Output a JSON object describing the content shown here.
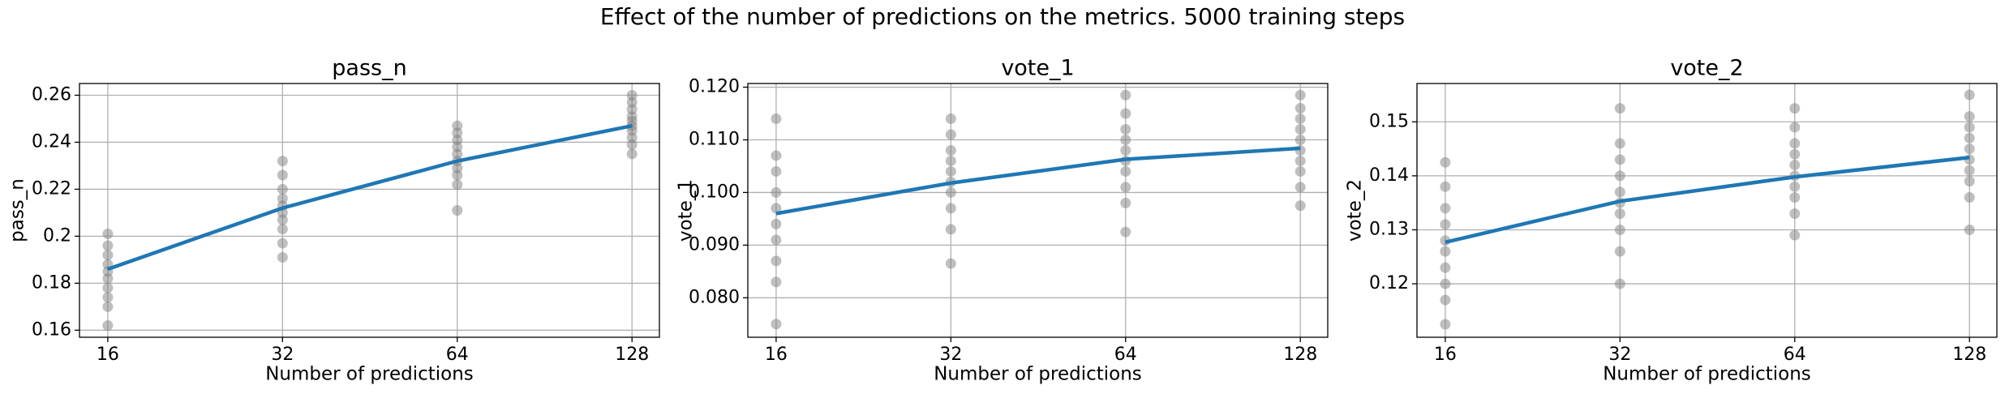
{
  "title": "Effect of the number of predictions on the metrics. 5000 training steps",
  "chart_data": [
    {
      "type": "line",
      "title": "pass_n",
      "xlabel": "Number of predictions",
      "ylabel": "pass_n",
      "x": [
        16,
        32,
        64,
        128
      ],
      "values": [
        0.186,
        0.212,
        0.232,
        0.247
      ],
      "color": "#1f77b4",
      "points": {
        "color": "#808080",
        "x": [
          16,
          16,
          16,
          16,
          16,
          16,
          16,
          16,
          16,
          16,
          32,
          32,
          32,
          32,
          32,
          32,
          32,
          32,
          32,
          32,
          64,
          64,
          64,
          64,
          64,
          64,
          64,
          64,
          64,
          64,
          128,
          128,
          128,
          128,
          128,
          128,
          128,
          128,
          128,
          128
        ],
        "values": [
          0.162,
          0.17,
          0.174,
          0.178,
          0.182,
          0.185,
          0.188,
          0.192,
          0.196,
          0.201,
          0.191,
          0.197,
          0.203,
          0.207,
          0.21,
          0.213,
          0.216,
          0.22,
          0.226,
          0.232,
          0.211,
          0.222,
          0.226,
          0.229,
          0.232,
          0.235,
          0.238,
          0.241,
          0.244,
          0.247,
          0.235,
          0.239,
          0.242,
          0.245,
          0.247,
          0.249,
          0.251,
          0.254,
          0.257,
          0.26
        ]
      },
      "xscale": "log2",
      "xlim": [
        14.3,
        142.7
      ],
      "xticks": [
        16,
        32,
        64,
        128
      ],
      "ylim": [
        0.157,
        0.265
      ],
      "yticks": [
        0.16,
        0.18,
        0.2,
        0.22,
        0.24,
        0.26
      ],
      "grid": true
    },
    {
      "type": "line",
      "title": "vote_1",
      "xlabel": "Number of predictions",
      "ylabel": "vote_1",
      "x": [
        16,
        32,
        64,
        128
      ],
      "values": [
        0.096,
        0.1018,
        0.1063,
        0.1084
      ],
      "color": "#1f77b4",
      "points": {
        "color": "#808080",
        "x": [
          16,
          16,
          16,
          16,
          16,
          16,
          16,
          16,
          16,
          16,
          32,
          32,
          32,
          32,
          32,
          32,
          32,
          32,
          32,
          32,
          64,
          64,
          64,
          64,
          64,
          64,
          64,
          64,
          64,
          64,
          128,
          128,
          128,
          128,
          128,
          128,
          128,
          128,
          128,
          128
        ],
        "values": [
          0.075,
          0.083,
          0.087,
          0.091,
          0.094,
          0.097,
          0.1,
          0.104,
          0.107,
          0.114,
          0.0865,
          0.093,
          0.097,
          0.1,
          0.102,
          0.104,
          0.106,
          0.108,
          0.111,
          0.114,
          0.0925,
          0.098,
          0.101,
          0.104,
          0.106,
          0.108,
          0.11,
          0.112,
          0.115,
          0.1185,
          0.0975,
          0.101,
          0.104,
          0.106,
          0.108,
          0.11,
          0.112,
          0.114,
          0.116,
          0.1185
        ]
      },
      "xscale": "log2",
      "xlim": [
        14.3,
        142.7
      ],
      "xticks": [
        16,
        32,
        64,
        128
      ],
      "ylim": [
        0.0725,
        0.1207
      ],
      "yticks": [
        {
          "value": 0.08,
          "label": "0.080"
        },
        {
          "value": 0.09,
          "label": "0.090"
        },
        {
          "value": 0.1,
          "label": "0.100"
        },
        {
          "value": 0.11,
          "label": "0.110"
        },
        {
          "value": 0.12,
          "label": "0.120"
        }
      ],
      "grid": true
    },
    {
      "type": "line",
      "title": "vote_2",
      "xlabel": "Number of predictions",
      "ylabel": "vote_2",
      "x": [
        16,
        32,
        64,
        128
      ],
      "values": [
        0.1277,
        0.1353,
        0.1398,
        0.1434
      ],
      "color": "#1f77b4",
      "points": {
        "color": "#808080",
        "x": [
          16,
          16,
          16,
          16,
          16,
          16,
          16,
          16,
          16,
          16,
          32,
          32,
          32,
          32,
          32,
          32,
          32,
          32,
          32,
          32,
          64,
          64,
          64,
          64,
          64,
          64,
          64,
          64,
          64,
          64,
          128,
          128,
          128,
          128,
          128,
          128,
          128,
          128,
          128,
          128
        ],
        "values": [
          0.1125,
          0.117,
          0.12,
          0.123,
          0.126,
          0.128,
          0.131,
          0.134,
          0.138,
          0.1425,
          0.12,
          0.126,
          0.13,
          0.133,
          0.135,
          0.137,
          0.14,
          0.143,
          0.146,
          0.1525,
          0.129,
          0.133,
          0.136,
          0.138,
          0.14,
          0.142,
          0.144,
          0.146,
          0.149,
          0.1525,
          0.13,
          0.136,
          0.139,
          0.141,
          0.143,
          0.145,
          0.147,
          0.149,
          0.151,
          0.155
        ]
      },
      "xscale": "log2",
      "xlim": [
        14.3,
        142.7
      ],
      "xticks": [
        16,
        32,
        64,
        128
      ],
      "ylim": [
        0.1101,
        0.1571
      ],
      "yticks": [
        0.12,
        0.13,
        0.14,
        0.15
      ],
      "grid": true
    }
  ]
}
